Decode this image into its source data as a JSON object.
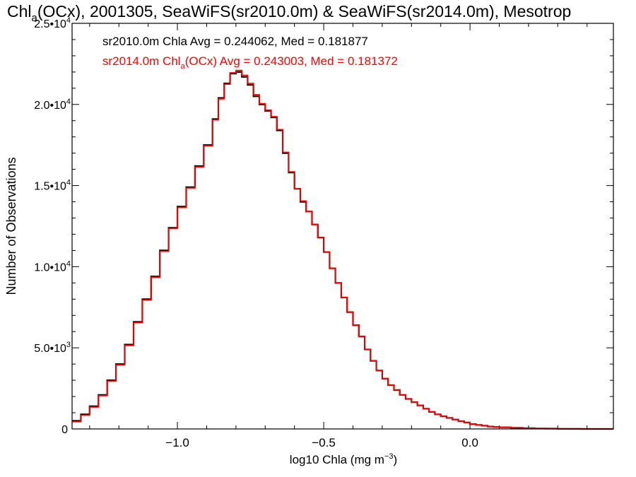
{
  "chart_data": {
    "type": "line",
    "title": {
      "pre": "Chl",
      "sub": "a",
      "post": "(OCx), 2001305, SeaWiFS(sr2010.0m) & SeaWiFS(sr2014.0m), Mesotrop"
    },
    "xlabel": {
      "pre": "log10 Chla (mg m",
      "sup": "−3",
      "post": ")"
    },
    "ylabel": "Number of Observations",
    "xlim": [
      -1.36,
      0.49
    ],
    "ylim": [
      0,
      25000
    ],
    "grid": false,
    "x_ticks": [
      {
        "value": -1.0,
        "label": "−1.0"
      },
      {
        "value": -0.5,
        "label": "−0.5"
      },
      {
        "value": 0.0,
        "label": "0.0"
      }
    ],
    "y_ticks": [
      {
        "value": 0,
        "label": "0",
        "sup": ""
      },
      {
        "value": 5000,
        "label": "5.0•10",
        "sup": "3"
      },
      {
        "value": 10000,
        "label": "1.0•10",
        "sup": "4"
      },
      {
        "value": 15000,
        "label": "1.5•10",
        "sup": "4"
      },
      {
        "value": 20000,
        "label": "2.0•10",
        "sup": "4"
      },
      {
        "value": 25000,
        "label": "2.5•10",
        "sup": "4"
      }
    ],
    "legend": {
      "placement": "top-left",
      "entries": [
        {
          "pre": "sr2010.0m Chla Avg = 0.244062, Med = 0.181877",
          "sub": "",
          "post": "",
          "color": "#000000"
        },
        {
          "pre": "sr2014.0m Chl",
          "sub": "a",
          "post": "(OCx) Avg = 0.243003, Med = 0.181372",
          "color": "#ff0000"
        }
      ]
    },
    "series": [
      {
        "color": "#000000",
        "x": [
          -1.36,
          -1.33,
          -1.3,
          -1.27,
          -1.24,
          -1.21,
          -1.18,
          -1.15,
          -1.12,
          -1.09,
          -1.06,
          -1.03,
          -1.0,
          -0.97,
          -0.94,
          -0.91,
          -0.88,
          -0.86,
          -0.84,
          -0.82,
          -0.8,
          -0.78,
          -0.76,
          -0.74,
          -0.72,
          -0.7,
          -0.68,
          -0.66,
          -0.64,
          -0.62,
          -0.6,
          -0.58,
          -0.56,
          -0.54,
          -0.52,
          -0.5,
          -0.48,
          -0.46,
          -0.44,
          -0.42,
          -0.4,
          -0.38,
          -0.36,
          -0.34,
          -0.32,
          -0.3,
          -0.28,
          -0.26,
          -0.24,
          -0.22,
          -0.2,
          -0.18,
          -0.16,
          -0.14,
          -0.12,
          -0.1,
          -0.08,
          -0.06,
          -0.04,
          -0.02,
          0.0,
          0.02,
          0.04,
          0.06,
          0.08,
          0.1,
          0.14,
          0.18,
          0.22,
          0.26,
          0.3,
          0.34,
          0.38,
          0.42,
          0.46,
          0.49
        ],
        "y": [
          500,
          900,
          1400,
          2100,
          3000,
          4000,
          5200,
          6600,
          8000,
          9400,
          11000,
          12400,
          13700,
          14900,
          16200,
          17500,
          19100,
          20400,
          21300,
          21900,
          22000,
          21700,
          21200,
          20500,
          20000,
          19600,
          19200,
          18400,
          17000,
          15800,
          14800,
          14000,
          13400,
          12600,
          11800,
          10900,
          9900,
          9000,
          8100,
          7200,
          6400,
          5700,
          4900,
          4200,
          3600,
          3100,
          2700,
          2400,
          2100,
          1850,
          1650,
          1450,
          1250,
          1050,
          900,
          780,
          680,
          580,
          480,
          400,
          300,
          250,
          200,
          150,
          120,
          100,
          70,
          50,
          30,
          20,
          10,
          5,
          0,
          0,
          0,
          0
        ]
      },
      {
        "color": "#ff0000",
        "x": [
          -1.36,
          -1.33,
          -1.3,
          -1.27,
          -1.24,
          -1.21,
          -1.18,
          -1.15,
          -1.12,
          -1.09,
          -1.06,
          -1.03,
          -1.0,
          -0.97,
          -0.94,
          -0.91,
          -0.88,
          -0.86,
          -0.84,
          -0.82,
          -0.8,
          -0.78,
          -0.76,
          -0.74,
          -0.72,
          -0.7,
          -0.68,
          -0.66,
          -0.64,
          -0.62,
          -0.6,
          -0.58,
          -0.56,
          -0.54,
          -0.52,
          -0.5,
          -0.48,
          -0.46,
          -0.44,
          -0.42,
          -0.4,
          -0.38,
          -0.36,
          -0.34,
          -0.32,
          -0.3,
          -0.28,
          -0.26,
          -0.24,
          -0.22,
          -0.2,
          -0.18,
          -0.16,
          -0.14,
          -0.12,
          -0.1,
          -0.08,
          -0.06,
          -0.04,
          -0.02,
          0.0,
          0.02,
          0.04,
          0.06,
          0.08,
          0.1,
          0.14,
          0.18,
          0.22,
          0.26,
          0.3,
          0.34,
          0.38,
          0.42,
          0.46,
          0.49
        ],
        "y": [
          450,
          850,
          1350,
          2050,
          2950,
          3950,
          5150,
          6550,
          7950,
          9350,
          10950,
          12350,
          13650,
          14850,
          16150,
          17450,
          19050,
          20350,
          21250,
          21950,
          22100,
          21800,
          21300,
          20600,
          20050,
          19650,
          19250,
          18450,
          17050,
          15850,
          14800,
          14050,
          13400,
          12600,
          11800,
          10900,
          9900,
          9000,
          8100,
          7200,
          6400,
          5700,
          4900,
          4200,
          3600,
          3100,
          2700,
          2400,
          2100,
          1850,
          1650,
          1450,
          1250,
          1050,
          900,
          780,
          680,
          580,
          480,
          400,
          300,
          250,
          200,
          150,
          120,
          100,
          70,
          50,
          30,
          20,
          10,
          5,
          0,
          0,
          0,
          0
        ]
      }
    ]
  }
}
